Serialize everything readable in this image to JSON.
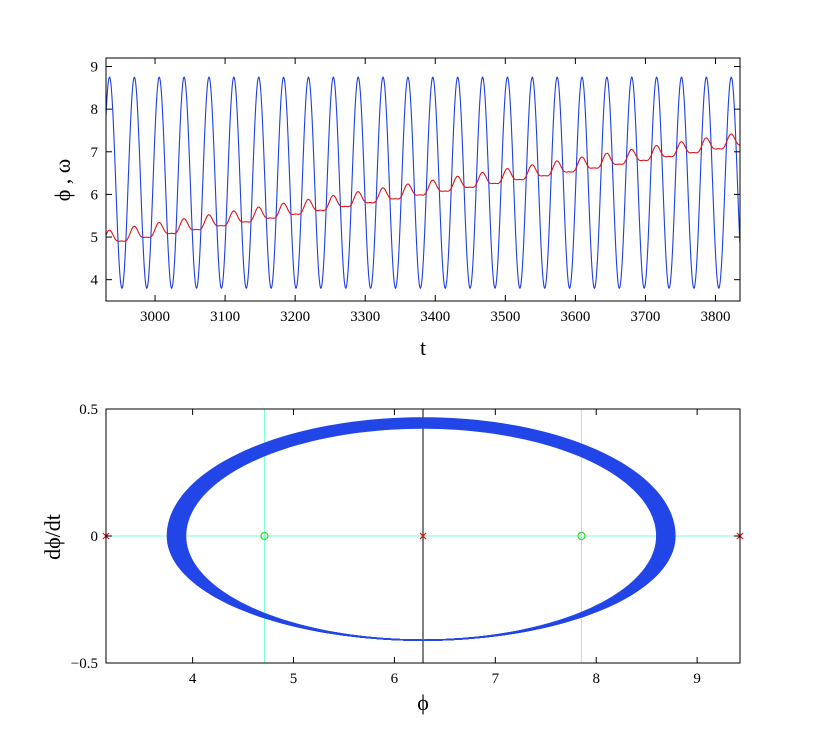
{
  "chart_data": [
    {
      "type": "line",
      "xlabel": "t",
      "ylabel": "ϕ , ω",
      "xlim": [
        2930,
        3835
      ],
      "ylim": [
        3.5,
        9.2
      ],
      "xticks": [
        3000,
        3100,
        3200,
        3300,
        3400,
        3500,
        3600,
        3700,
        3800
      ],
      "yticks": [
        4,
        5,
        6,
        7,
        8,
        9
      ],
      "grid": false,
      "series": [
        {
          "color": "#1f3fe0",
          "description_of_shape": "oscillation",
          "amplitude_min": 3.8,
          "amplitude_max": 8.75,
          "period": 35.5,
          "t_start": 2930,
          "t_end": 3835
        },
        {
          "color": "#e01414",
          "trend_start": 4.95,
          "trend_end": 7.25,
          "ripple_amplitude": 0.15,
          "ripple_period": 35.5,
          "t_start": 2930,
          "t_end": 3835
        }
      ]
    },
    {
      "type": "scatter",
      "xlabel": "ϕ",
      "ylabel": "dϕ/dt",
      "xlim": [
        3.14159,
        9.42478
      ],
      "ylim": [
        -0.5,
        0.5
      ],
      "xticks": [
        4,
        5,
        6,
        7,
        8,
        9
      ],
      "yticks": [
        -0.5,
        0,
        0.5
      ],
      "ytick_labels": [
        "−0.5",
        "0",
        "0.5"
      ],
      "grid": false,
      "orbit": {
        "color": "#2346e8",
        "phi_min": 3.75,
        "phi_max": 8.78,
        "center": 6.2832,
        "dphi_max": 0.465,
        "dphi_min": -0.41,
        "band_width": 0.04
      },
      "reference_lines": {
        "color_cyan": "#7fffd4",
        "color_black": "#000000",
        "vertical_cyan": [
          4.7124,
          7.854
        ],
        "vertical_black": [
          6.2832
        ],
        "horizontal_cyan": [
          0
        ]
      },
      "equilibria": {
        "saddles_x": [
          3.14159,
          6.2832,
          9.42478
        ],
        "saddle_color": "#e01414",
        "centers_x": [
          4.7124,
          7.854
        ],
        "center_color": "#3ad13a"
      }
    }
  ]
}
